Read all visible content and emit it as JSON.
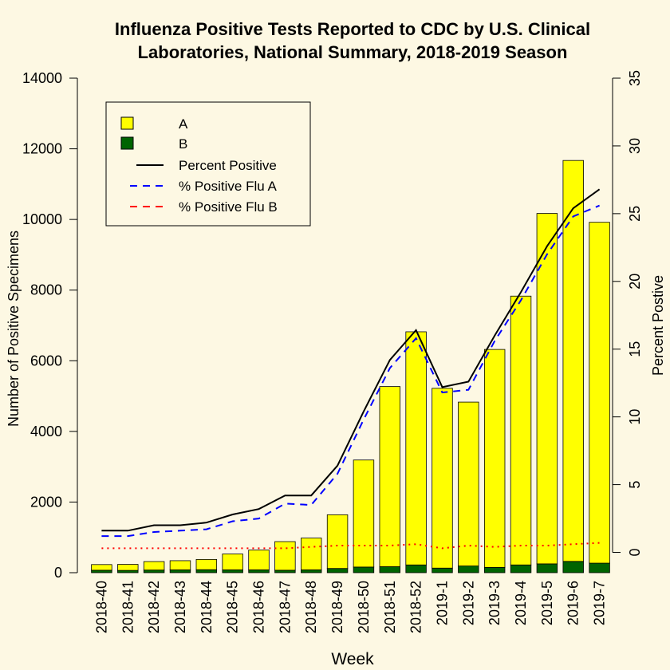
{
  "chart_data": {
    "type": "bar",
    "title_line1": "Influenza Positive Tests Reported to CDC by U.S. Clinical",
    "title_line2": "Laboratories, National Summary, 2018-2019 Season",
    "xlabel": "Week",
    "ylabel": "Number of Positive Specimens",
    "y2label": "Percent Postive",
    "ylim": [
      0,
      14000
    ],
    "y2lim": [
      -1.5,
      35
    ],
    "yticks": [
      "0",
      "2000",
      "4000",
      "6000",
      "8000",
      "10000",
      "12000",
      "14000"
    ],
    "y2ticks": [
      "0",
      "5",
      "10",
      "15",
      "20",
      "25",
      "30",
      "35"
    ],
    "categories": [
      "2018-40",
      "2018-41",
      "2018-42",
      "2018-43",
      "2018-44",
      "2018-45",
      "2018-46",
      "2018-47",
      "2018-48",
      "2018-49",
      "2018-50",
      "2018-51",
      "2018-52",
      "2019-1",
      "2019-2",
      "2019-3",
      "2019-4",
      "2019-5",
      "2019-6",
      "2019-7"
    ],
    "stacked": true,
    "series": [
      {
        "name": "A",
        "kind": "bar",
        "color": "#ffff00",
        "values": [
          160,
          170,
          240,
          260,
          290,
          450,
          560,
          810,
          900,
          1520,
          3030,
          5100,
          6600,
          5090,
          4640,
          6170,
          7610,
          9920,
          11350,
          9650
        ]
      },
      {
        "name": "B",
        "kind": "bar",
        "color": "#006400",
        "values": [
          70,
          65,
          75,
          80,
          85,
          80,
          80,
          70,
          80,
          120,
          160,
          170,
          220,
          130,
          190,
          150,
          220,
          250,
          320,
          270
        ]
      },
      {
        "name": "Percent Positive",
        "kind": "line",
        "axis": "right",
        "color": "#000000",
        "dash": "solid",
        "values": [
          1.6,
          1.6,
          2.0,
          2.0,
          2.2,
          2.8,
          3.2,
          4.2,
          4.2,
          6.4,
          10.4,
          14.2,
          16.4,
          12.2,
          12.6,
          16.0,
          19.2,
          22.6,
          25.4,
          26.8
        ]
      },
      {
        "name": "% Positive Flu A",
        "kind": "line",
        "axis": "right",
        "color": "#0000ff",
        "dash": "dashed",
        "values": [
          1.2,
          1.2,
          1.5,
          1.6,
          1.7,
          2.3,
          2.5,
          3.6,
          3.5,
          5.8,
          9.8,
          13.6,
          15.8,
          11.8,
          12.0,
          15.6,
          18.6,
          22.0,
          24.8,
          25.6
        ]
      },
      {
        "name": "% Positive Flu B",
        "kind": "line",
        "axis": "right",
        "color": "#ff0000",
        "dash": "dotted",
        "values": [
          0.3,
          0.3,
          0.3,
          0.3,
          0.3,
          0.3,
          0.3,
          0.3,
          0.4,
          0.5,
          0.5,
          0.5,
          0.6,
          0.3,
          0.5,
          0.4,
          0.5,
          0.5,
          0.6,
          0.7
        ]
      }
    ],
    "grid": false,
    "legend_position": "top-left"
  }
}
